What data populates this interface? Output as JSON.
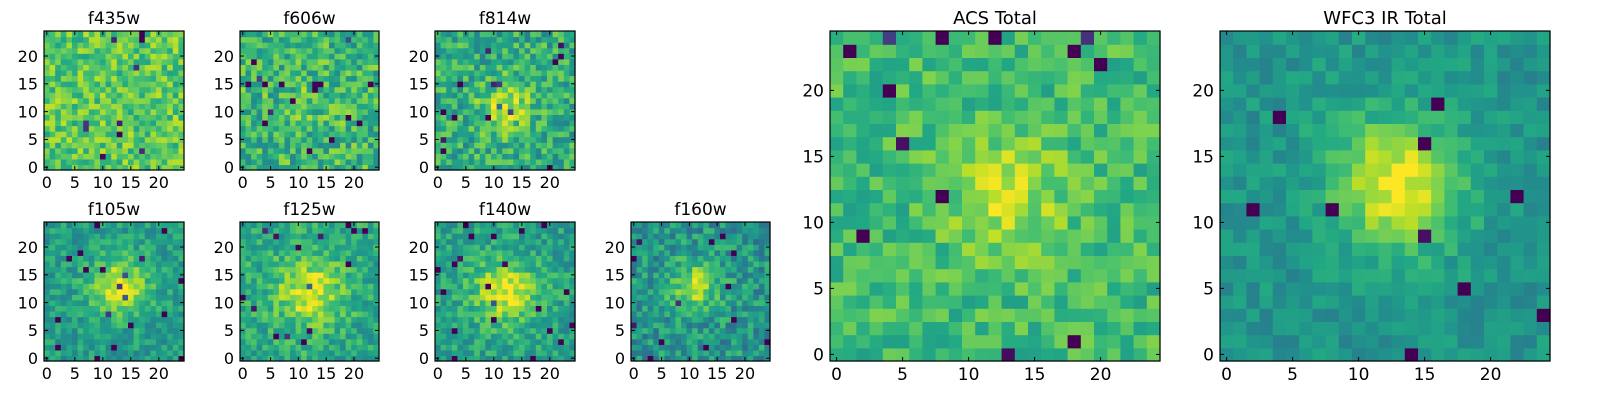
{
  "figure": {
    "colormap": "viridis",
    "colors": {
      "low": "#440154",
      "mid": "#21918c",
      "high": "#fde725"
    }
  },
  "chart_data": [
    {
      "type": "heatmap",
      "title": "f435w",
      "xlim": [
        0,
        24
      ],
      "ylim": [
        0,
        24
      ],
      "grid": false,
      "x_ticks": [
        0,
        5,
        10,
        15,
        20
      ],
      "y_ticks": [
        0,
        5,
        10,
        15,
        20
      ],
      "x_tick_labels": [
        "0",
        "5",
        "10",
        "15",
        "20"
      ],
      "y_tick_labels": [
        "0",
        "5",
        "10",
        "15",
        "20"
      ],
      "values": {
        "base": 0.74,
        "noise": 0.17,
        "peak_center": [
          12,
          12
        ],
        "peak_amplitude": 0.0,
        "peak_width": 3.5,
        "seed": 11
      }
    },
    {
      "type": "heatmap",
      "title": "f606w",
      "xlim": [
        0,
        24
      ],
      "ylim": [
        0,
        24
      ],
      "grid": false,
      "x_ticks": [
        0,
        5,
        10,
        15,
        20
      ],
      "y_ticks": [
        0,
        5,
        10,
        15,
        20
      ],
      "x_tick_labels": [
        "0",
        "5",
        "10",
        "15",
        "20"
      ],
      "y_tick_labels": [
        "0",
        "5",
        "10",
        "15",
        "20"
      ],
      "values": {
        "base": 0.66,
        "noise": 0.2,
        "peak_center": [
          12,
          12
        ],
        "peak_amplitude": 0.05,
        "peak_width": 3.5,
        "seed": 23
      }
    },
    {
      "type": "heatmap",
      "title": "f814w",
      "xlim": [
        0,
        24
      ],
      "ylim": [
        0,
        24
      ],
      "grid": false,
      "x_ticks": [
        0,
        5,
        10,
        15,
        20
      ],
      "y_ticks": [
        0,
        5,
        10,
        15,
        20
      ],
      "x_tick_labels": [
        "0",
        "5",
        "10",
        "15",
        "20"
      ],
      "y_tick_labels": [
        "0",
        "5",
        "10",
        "15",
        "20"
      ],
      "values": {
        "base": 0.62,
        "noise": 0.19,
        "peak_center": [
          12,
          11
        ],
        "peak_amplitude": 0.3,
        "peak_width": 3.0,
        "seed": 37
      }
    },
    {
      "type": "heatmap",
      "title": "f105w",
      "xlim": [
        0,
        24
      ],
      "ylim": [
        0,
        24
      ],
      "grid": false,
      "x_ticks": [
        0,
        5,
        10,
        15,
        20
      ],
      "y_ticks": [
        0,
        5,
        10,
        15,
        20
      ],
      "x_tick_labels": [
        "0",
        "5",
        "10",
        "15",
        "20"
      ],
      "y_tick_labels": [
        "0",
        "5",
        "10",
        "15",
        "20"
      ],
      "values": {
        "base": 0.55,
        "noise": 0.13,
        "peak_center": [
          13,
          13
        ],
        "peak_amplitude": 0.4,
        "peak_width": 3.6,
        "seed": 41
      }
    },
    {
      "type": "heatmap",
      "title": "f125w",
      "xlim": [
        0,
        24
      ],
      "ylim": [
        0,
        24
      ],
      "grid": false,
      "x_ticks": [
        0,
        5,
        10,
        15,
        20
      ],
      "y_ticks": [
        0,
        5,
        10,
        15,
        20
      ],
      "x_tick_labels": [
        "0",
        "5",
        "10",
        "15",
        "20"
      ],
      "y_tick_labels": [
        "0",
        "5",
        "10",
        "15",
        "20"
      ],
      "values": {
        "base": 0.6,
        "noise": 0.15,
        "peak_center": [
          12,
          12
        ],
        "peak_amplitude": 0.35,
        "peak_width": 4.2,
        "seed": 53
      }
    },
    {
      "type": "heatmap",
      "title": "f140w",
      "xlim": [
        0,
        24
      ],
      "ylim": [
        0,
        24
      ],
      "grid": false,
      "x_ticks": [
        0,
        5,
        10,
        15,
        20
      ],
      "y_ticks": [
        0,
        5,
        10,
        15,
        20
      ],
      "x_tick_labels": [
        "0",
        "5",
        "10",
        "15",
        "20"
      ],
      "y_tick_labels": [
        "0",
        "5",
        "10",
        "15",
        "20"
      ],
      "values": {
        "base": 0.57,
        "noise": 0.14,
        "peak_center": [
          12,
          12
        ],
        "peak_amplitude": 0.38,
        "peak_width": 4.0,
        "seed": 67
      }
    },
    {
      "type": "heatmap",
      "title": "f160w",
      "xlim": [
        0,
        24
      ],
      "ylim": [
        0,
        24
      ],
      "grid": false,
      "x_ticks": [
        0,
        5,
        10,
        15,
        20
      ],
      "y_ticks": [
        0,
        5,
        10,
        15,
        20
      ],
      "x_tick_labels": [
        "0",
        "5",
        "10",
        "15",
        "20"
      ],
      "y_tick_labels": [
        "0",
        "5",
        "10",
        "15",
        "20"
      ],
      "values": {
        "base": 0.52,
        "noise": 0.17,
        "peak_center": [
          11,
          13
        ],
        "peak_amplitude": 0.38,
        "peak_width": 3.0,
        "seed": 79
      }
    },
    {
      "type": "heatmap",
      "title": "ACS Total",
      "xlim": [
        0,
        24
      ],
      "ylim": [
        0,
        24
      ],
      "grid": false,
      "x_ticks": [
        0,
        5,
        10,
        15,
        20
      ],
      "y_ticks": [
        0,
        5,
        10,
        15,
        20
      ],
      "x_tick_labels": [
        "0",
        "5",
        "10",
        "15",
        "20"
      ],
      "y_tick_labels": [
        "0",
        "5",
        "10",
        "15",
        "20"
      ],
      "values": {
        "base": 0.68,
        "noise": 0.13,
        "peak_center": [
          13,
          12
        ],
        "peak_amplitude": 0.22,
        "peak_width": 3.2,
        "seed": 97
      }
    },
    {
      "type": "heatmap",
      "title": "WFC3 IR Total",
      "xlim": [
        0,
        24
      ],
      "ylim": [
        0,
        24
      ],
      "grid": false,
      "x_ticks": [
        0,
        5,
        10,
        15,
        20
      ],
      "y_ticks": [
        0,
        5,
        10,
        15,
        20
      ],
      "x_tick_labels": [
        "0",
        "5",
        "10",
        "15",
        "20"
      ],
      "y_tick_labels": [
        "0",
        "5",
        "10",
        "15",
        "20"
      ],
      "values": {
        "base": 0.52,
        "noise": 0.09,
        "peak_center": [
          13,
          13
        ],
        "peak_amplitude": 0.45,
        "peak_width": 3.5,
        "seed": 131
      }
    }
  ]
}
